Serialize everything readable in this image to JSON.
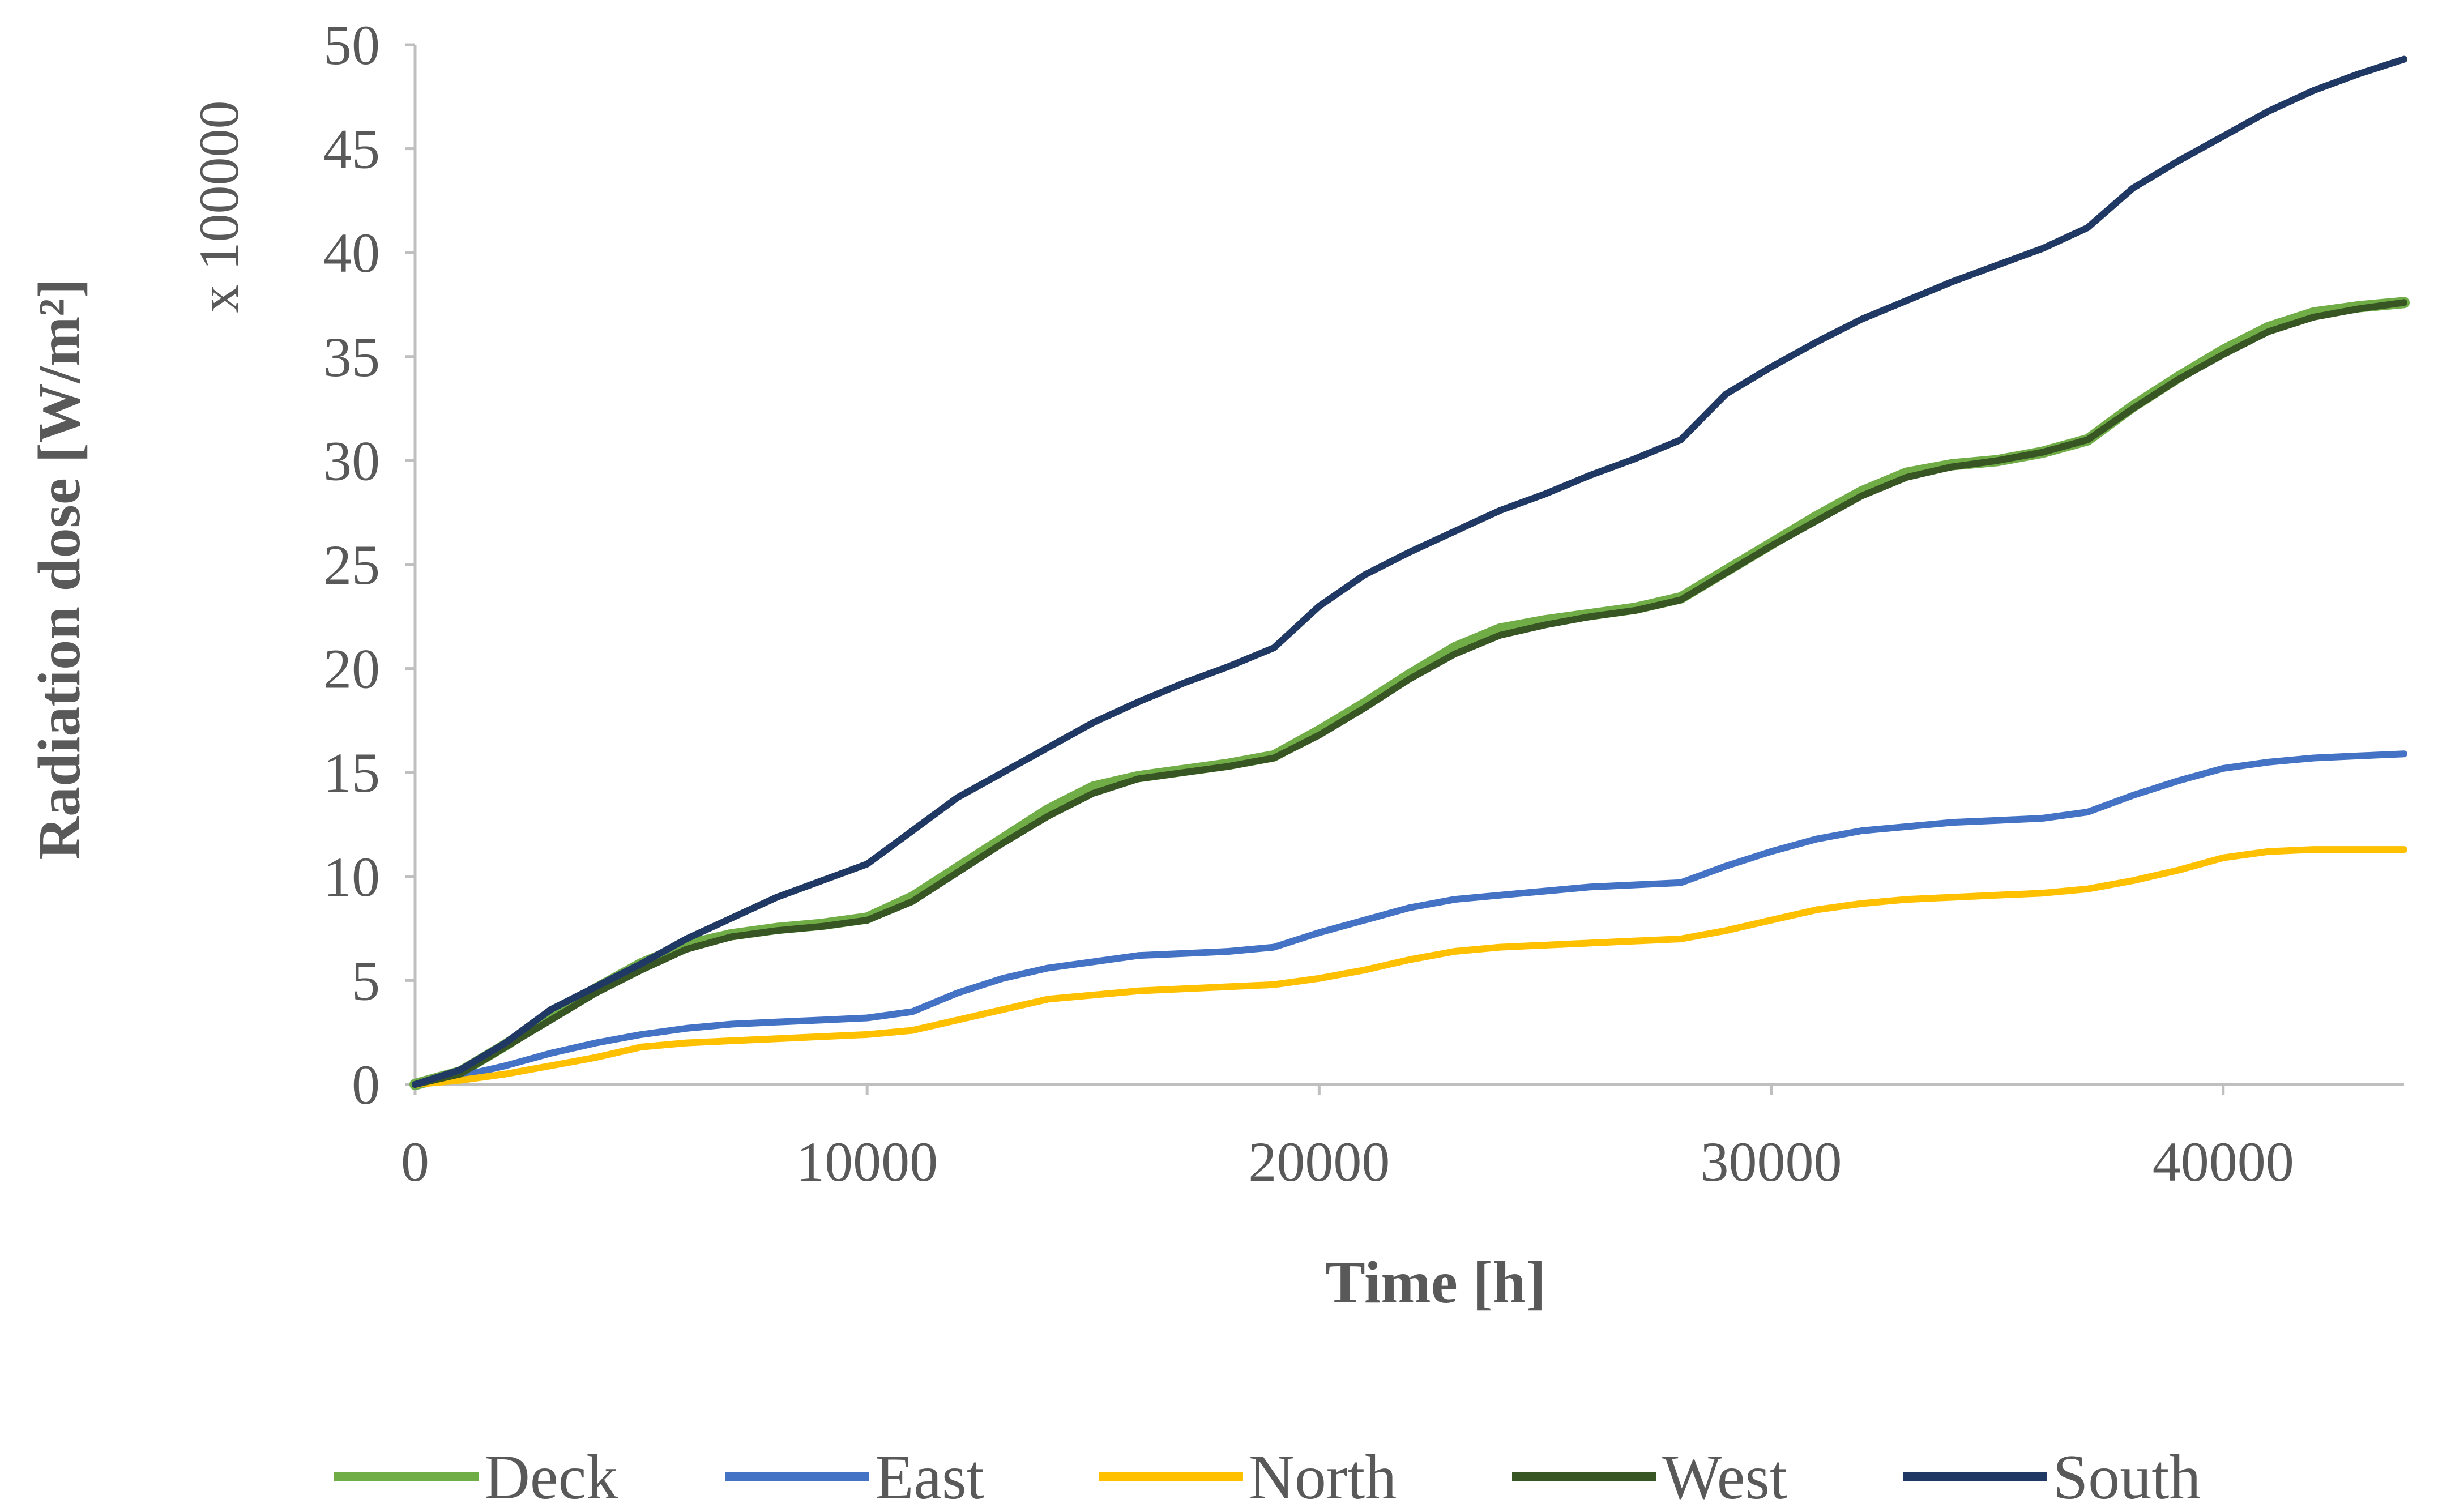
{
  "chart_data": {
    "type": "line",
    "xlabel": "Time [h]",
    "ylabel": "Radiation dose [W/m²]",
    "y_multiplier_label": "x 100000",
    "xlim": [
      0,
      44000
    ],
    "ylim": [
      0,
      50
    ],
    "x_ticks": [
      0,
      10000,
      20000,
      30000,
      40000
    ],
    "x_tick_labels": [
      "0",
      "10000",
      "20000",
      "30000",
      "40000"
    ],
    "y_ticks": [
      0,
      5,
      10,
      15,
      20,
      25,
      30,
      35,
      40,
      45,
      50
    ],
    "y_tick_labels": [
      "0",
      "5",
      "10",
      "15",
      "20",
      "25",
      "30",
      "35",
      "40",
      "45",
      "50"
    ],
    "grid": false,
    "legend_position": "bottom",
    "x": [
      0,
      1000,
      2000,
      3000,
      4000,
      5000,
      6000,
      7000,
      8000,
      9000,
      10000,
      11000,
      12000,
      13000,
      14000,
      15000,
      16000,
      17000,
      18000,
      19000,
      20000,
      21000,
      22000,
      23000,
      24000,
      25000,
      26000,
      27000,
      28000,
      29000,
      30000,
      31000,
      32000,
      33000,
      34000,
      35000,
      36000,
      37000,
      38000,
      39000,
      40000,
      41000,
      42000,
      43000,
      44000
    ],
    "series": [
      {
        "name": "Deck",
        "color": "#70ad47",
        "values": [
          0,
          0.6,
          1.9,
          3.3,
          4.6,
          5.8,
          6.7,
          7.2,
          7.5,
          7.7,
          8.0,
          9.0,
          10.4,
          11.8,
          13.2,
          14.3,
          14.8,
          15.1,
          15.4,
          15.8,
          17.0,
          18.3,
          19.7,
          21.0,
          21.9,
          22.3,
          22.6,
          22.9,
          23.4,
          24.7,
          26.0,
          27.3,
          28.5,
          29.4,
          29.8,
          30.0,
          30.4,
          31.0,
          32.6,
          34.0,
          35.3,
          36.4,
          37.1,
          37.4,
          37.6
        ]
      },
      {
        "name": "East",
        "color": "#4472c4",
        "values": [
          0,
          0.4,
          0.9,
          1.5,
          2.0,
          2.4,
          2.7,
          2.9,
          3.0,
          3.1,
          3.2,
          3.5,
          4.4,
          5.1,
          5.6,
          5.9,
          6.2,
          6.3,
          6.4,
          6.6,
          7.3,
          7.9,
          8.5,
          8.9,
          9.1,
          9.3,
          9.5,
          9.6,
          9.7,
          10.5,
          11.2,
          11.8,
          12.2,
          12.4,
          12.6,
          12.7,
          12.8,
          13.1,
          13.9,
          14.6,
          15.2,
          15.5,
          15.7,
          15.8,
          15.9
        ]
      },
      {
        "name": "North",
        "color": "#ffc000",
        "values": [
          0,
          0.2,
          0.5,
          0.9,
          1.3,
          1.8,
          2.0,
          2.1,
          2.2,
          2.3,
          2.4,
          2.6,
          3.1,
          3.6,
          4.1,
          4.3,
          4.5,
          4.6,
          4.7,
          4.8,
          5.1,
          5.5,
          6.0,
          6.4,
          6.6,
          6.7,
          6.8,
          6.9,
          7.0,
          7.4,
          7.9,
          8.4,
          8.7,
          8.9,
          9.0,
          9.1,
          9.2,
          9.4,
          9.8,
          10.3,
          10.9,
          11.2,
          11.3,
          11.3,
          11.3
        ]
      },
      {
        "name": "West",
        "color": "#375623",
        "values": [
          0,
          0.5,
          1.8,
          3.1,
          4.4,
          5.5,
          6.5,
          7.1,
          7.4,
          7.6,
          7.9,
          8.8,
          10.2,
          11.6,
          12.9,
          14.0,
          14.7,
          15.0,
          15.3,
          15.7,
          16.8,
          18.1,
          19.5,
          20.7,
          21.6,
          22.1,
          22.5,
          22.8,
          23.3,
          24.6,
          25.9,
          27.1,
          28.3,
          29.2,
          29.7,
          30.0,
          30.4,
          31.0,
          32.5,
          33.9,
          35.1,
          36.2,
          36.9,
          37.3,
          37.6
        ]
      },
      {
        "name": "South",
        "color": "#203864",
        "values": [
          0,
          0.7,
          2.0,
          3.6,
          4.7,
          5.8,
          7.0,
          8.0,
          9.0,
          9.8,
          10.6,
          12.2,
          13.8,
          15.0,
          16.2,
          17.4,
          18.4,
          19.3,
          20.1,
          21.0,
          23.0,
          24.5,
          25.6,
          26.6,
          27.6,
          28.4,
          29.3,
          30.1,
          31.0,
          33.2,
          34.5,
          35.7,
          36.8,
          37.7,
          38.6,
          39.4,
          40.2,
          41.2,
          43.1,
          44.4,
          45.6,
          46.8,
          47.8,
          48.6,
          49.3
        ]
      }
    ]
  }
}
